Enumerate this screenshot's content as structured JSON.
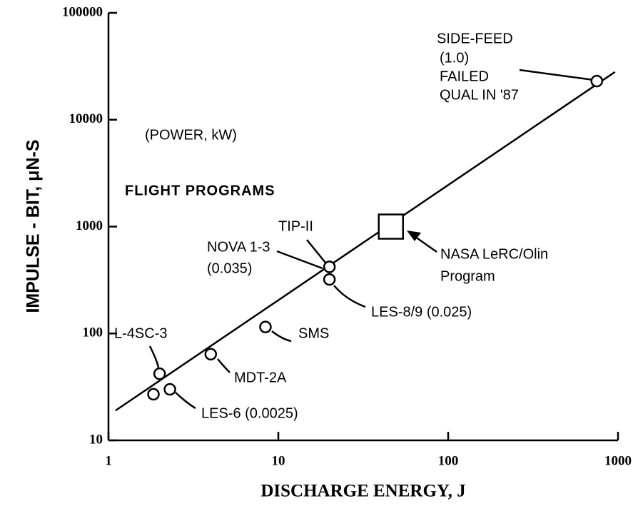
{
  "chart_data": {
    "type": "scatter",
    "xlabel": "DISCHARGE ENERGY, J",
    "ylabel": "IMPULSE - BIT, μN-S",
    "xscale": "log",
    "yscale": "log",
    "xlim": [
      1,
      1000
    ],
    "ylim": [
      10,
      100000
    ],
    "xticks": [
      1,
      10,
      100,
      1000
    ],
    "yticks": [
      10,
      100,
      1000,
      10000,
      100000
    ],
    "grid": false,
    "color": "#000000",
    "series": [
      {
        "marker": "circle",
        "x": [
          750,
          20,
          20,
          8.4,
          4.0,
          2.0,
          2.3,
          1.84
        ],
        "y": [
          23000,
          420,
          320,
          115,
          64,
          42,
          30,
          27
        ]
      },
      {
        "marker": "square",
        "x": [
          46
        ],
        "y": [
          1000
        ]
      }
    ],
    "fit_line": {
      "x": [
        1.1,
        960
      ],
      "y": [
        19,
        28000
      ]
    },
    "annotations": [
      "SIDE-FEED",
      "(1.0)",
      "FAILED",
      "QUAL IN '87",
      "(POWER, kW)",
      "FLIGHT PROGRAMS",
      "TIP-II",
      "NOVA 1-3",
      "(0.035)",
      "NASA LeRC/Olin",
      "Program",
      "LES-8/9  (0.025)",
      "SMS",
      "L-4SC-3",
      "MDT-2A",
      "LES-6  (0.0025)"
    ]
  }
}
